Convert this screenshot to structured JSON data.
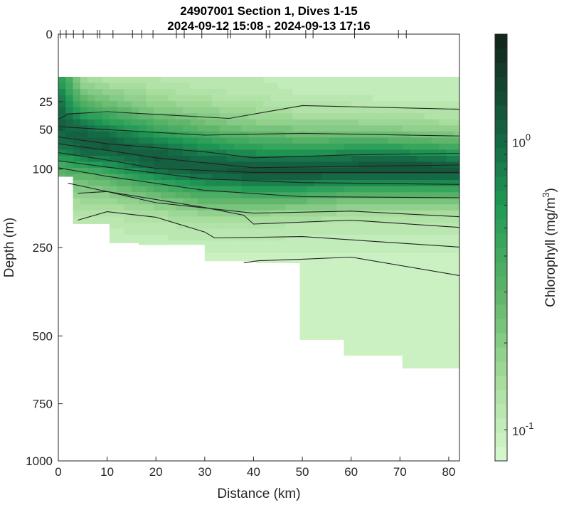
{
  "chart_data": {
    "type": "heatmap",
    "title": "24907001 Section 1, Dives 1-15",
    "subtitle": "2024-09-12 15:08 - 2024-09-13 17:16",
    "xlabel": "Distance (km)",
    "ylabel": "Depth (m)",
    "colorbar_label": "Chlorophyll (mg/m",
    "colorbar_label_sup": "3",
    "colorbar_label_end": ")",
    "xlim": [
      0,
      82.2
    ],
    "ylim": [
      0,
      1000
    ],
    "y_scale": "sqrt",
    "color_scale": "log",
    "clim": [
      0.078,
      2.35
    ],
    "xticks": [
      "0",
      "10",
      "20",
      "30",
      "40",
      "50",
      "60",
      "70",
      "80"
    ],
    "xtick_values": [
      0,
      10,
      20,
      30,
      40,
      50,
      60,
      70,
      80
    ],
    "yticks": [
      "0",
      "25",
      "50",
      "100",
      "250",
      "500",
      "750",
      "1000"
    ],
    "ytick_values": [
      0,
      25,
      50,
      100,
      250,
      500,
      750,
      1000
    ],
    "colorbar_ticks": [
      {
        "value": 1,
        "base": "10",
        "exp": "0"
      },
      {
        "value": 0.1,
        "base": "10",
        "exp": "-1"
      }
    ],
    "dive_positions_km": [
      0.4,
      1.6,
      3.1,
      5.1,
      8.0,
      8.5,
      11.2,
      15.2,
      17.1,
      19.4,
      24.2,
      25.8,
      29.4,
      34.7,
      35.3,
      42.6,
      43.3,
      50.7,
      52.2,
      60.7,
      69.7,
      71.3
    ],
    "colormap": [
      [
        "0.078",
        "#d8f8d0"
      ],
      [
        "0.15",
        "#a6dc9b"
      ],
      [
        "0.3",
        "#5db469"
      ],
      [
        "0.6",
        "#1f9a55"
      ],
      [
        "1.0",
        "#156a46"
      ],
      [
        "2.35",
        "#13231a"
      ]
    ],
    "top_depth_m": 10,
    "coverage_bottom": {
      "distance_km": [
        0,
        3.5,
        3.5,
        10,
        10,
        17,
        17,
        30,
        30,
        41,
        41,
        49,
        49,
        58,
        58,
        70,
        70,
        82.2
      ],
      "depth_m": [
        111,
        111,
        197,
        197,
        239,
        239,
        243,
        243,
        282,
        282,
        287,
        287,
        512,
        512,
        566,
        566,
        612,
        612
      ]
    },
    "grid": {
      "distance_km": [
        0,
        5,
        10,
        20,
        30,
        40,
        50,
        60,
        70,
        82.2
      ],
      "depth_m": [
        10,
        20,
        30,
        40,
        50,
        60,
        70,
        80,
        90,
        100,
        110,
        125,
        150,
        175,
        200,
        250,
        300,
        400,
        500,
        650
      ],
      "chlorophyll": [
        [
          0.6,
          0.9,
          1.1,
          1.2,
          1.1,
          1.0,
          0.8,
          0.6,
          0.45,
          0.35,
          0.3,
          0.2,
          0.15,
          0.12,
          0.1,
          0.09,
          0.09,
          0.09,
          0.09,
          0.09
        ],
        [
          0.15,
          0.25,
          0.4,
          0.7,
          1.0,
          1.2,
          1.1,
          0.9,
          0.6,
          0.4,
          0.3,
          0.22,
          0.16,
          0.13,
          0.11,
          0.1,
          0.09,
          0.09,
          0.09,
          0.09
        ],
        [
          0.12,
          0.2,
          0.3,
          0.5,
          0.8,
          1.1,
          1.2,
          1.0,
          0.7,
          0.5,
          0.35,
          0.25,
          0.17,
          0.13,
          0.11,
          0.1,
          0.09,
          0.09,
          0.09,
          0.09
        ],
        [
          0.12,
          0.15,
          0.2,
          0.3,
          0.45,
          0.7,
          0.95,
          1.2,
          1.2,
          1.0,
          0.7,
          0.4,
          0.22,
          0.15,
          0.12,
          0.1,
          0.09,
          0.09,
          0.09,
          0.09
        ],
        [
          0.11,
          0.13,
          0.17,
          0.22,
          0.3,
          0.45,
          0.65,
          0.9,
          1.1,
          1.2,
          1.0,
          0.6,
          0.3,
          0.18,
          0.13,
          0.1,
          0.09,
          0.09,
          0.09,
          0.09
        ],
        [
          0.11,
          0.12,
          0.15,
          0.18,
          0.24,
          0.35,
          0.5,
          0.75,
          1.0,
          1.3,
          1.2,
          0.7,
          0.3,
          0.18,
          0.13,
          0.1,
          0.09,
          0.09,
          0.09,
          0.09
        ],
        [
          0.1,
          0.11,
          0.13,
          0.16,
          0.22,
          0.3,
          0.45,
          0.7,
          1.0,
          1.3,
          1.2,
          0.7,
          0.3,
          0.17,
          0.12,
          0.1,
          0.09,
          0.09,
          0.09,
          0.09
        ],
        [
          0.1,
          0.11,
          0.13,
          0.16,
          0.22,
          0.32,
          0.5,
          0.8,
          1.1,
          1.3,
          1.1,
          0.6,
          0.25,
          0.15,
          0.12,
          0.1,
          0.09,
          0.09,
          0.09,
          0.09
        ],
        [
          0.1,
          0.1,
          0.12,
          0.15,
          0.2,
          0.3,
          0.5,
          0.8,
          1.2,
          1.4,
          1.1,
          0.6,
          0.25,
          0.15,
          0.12,
          0.1,
          0.09,
          0.09,
          0.09,
          0.09
        ],
        [
          0.1,
          0.1,
          0.12,
          0.14,
          0.18,
          0.25,
          0.4,
          0.65,
          1.0,
          1.3,
          1.1,
          0.6,
          0.25,
          0.15,
          0.12,
          0.1,
          0.09,
          0.09,
          0.09,
          0.09
        ]
      ]
    },
    "contour_lines": [
      {
        "distance_km": [
          0,
          2,
          10,
          35,
          50,
          82.2
        ],
        "depth_m": [
          40,
          35,
          33,
          39,
          28,
          31
        ]
      },
      {
        "distance_km": [
          0,
          10,
          30,
          50,
          82.2
        ],
        "depth_m": [
          47,
          50,
          56,
          54,
          57
        ]
      },
      {
        "distance_km": [
          0,
          10,
          30,
          40,
          60,
          82.2
        ],
        "depth_m": [
          58,
          66,
          76,
          84,
          80,
          78
        ]
      },
      {
        "distance_km": [
          0,
          10,
          20,
          40,
          60,
          82.2
        ],
        "depth_m": [
          66,
          74,
          84,
          98,
          96,
          94
        ]
      },
      {
        "distance_km": [
          0,
          10,
          20,
          40,
          70,
          82.2
        ],
        "depth_m": [
          77,
          87,
          99,
          105,
          105,
          105
        ]
      },
      {
        "distance_km": [
          0,
          10,
          30,
          50,
          82.2
        ],
        "depth_m": [
          88,
          97,
          115,
          121,
          124
        ]
      },
      {
        "distance_km": [
          0,
          10,
          30,
          50,
          82.2
        ],
        "depth_m": [
          98,
          111,
          134,
          145,
          147
        ]
      },
      {
        "distance_km": [
          2,
          10,
          20,
          40,
          60,
          82.2
        ],
        "depth_m": [
          122,
          136,
          156,
          176,
          172,
          183
        ]
      },
      {
        "distance_km": [
          4,
          10,
          30,
          38,
          40,
          60,
          82.2
        ],
        "depth_m": [
          139,
          136,
          165,
          180,
          198,
          190,
          205
        ]
      },
      {
        "distance_km": [
          4,
          10,
          20,
          30,
          32,
          50,
          82.2
        ],
        "depth_m": [
          190,
          173,
          184,
          215,
          228,
          225,
          249
        ]
      },
      {
        "distance_km": [
          38,
          41,
          50,
          60,
          82.2
        ],
        "depth_m": [
          287,
          282,
          278,
          273,
          320
        ]
      }
    ]
  }
}
